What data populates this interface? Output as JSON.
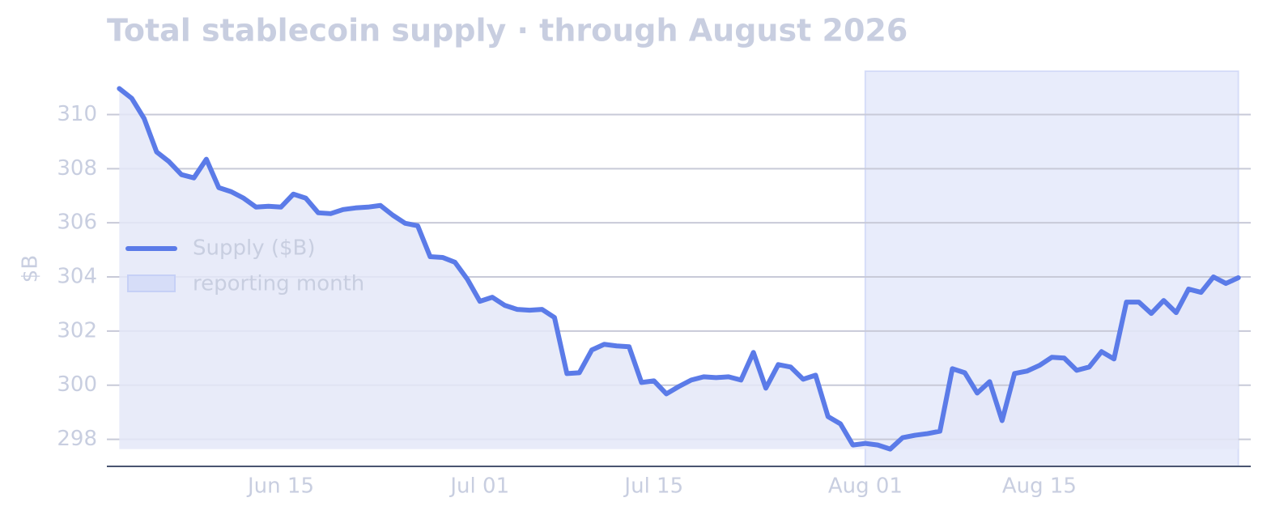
{
  "chart_data": {
    "type": "line",
    "title": "Total stablecoin supply · through August 2026",
    "ylabel": "$B",
    "x": [
      "2026-06-02",
      "2026-06-03",
      "2026-06-04",
      "2026-06-05",
      "2026-06-06",
      "2026-06-07",
      "2026-06-08",
      "2026-06-09",
      "2026-06-10",
      "2026-06-11",
      "2026-06-12",
      "2026-06-13",
      "2026-06-14",
      "2026-06-15",
      "2026-06-16",
      "2026-06-17",
      "2026-06-18",
      "2026-06-19",
      "2026-06-20",
      "2026-06-21",
      "2026-06-22",
      "2026-06-23",
      "2026-06-24",
      "2026-06-25",
      "2026-06-26",
      "2026-06-27",
      "2026-06-28",
      "2026-06-29",
      "2026-06-30",
      "2026-07-01",
      "2026-07-02",
      "2026-07-03",
      "2026-07-04",
      "2026-07-05",
      "2026-07-06",
      "2026-07-07",
      "2026-07-08",
      "2026-07-09",
      "2026-07-10",
      "2026-07-11",
      "2026-07-12",
      "2026-07-13",
      "2026-07-14",
      "2026-07-15",
      "2026-07-16",
      "2026-07-17",
      "2026-07-18",
      "2026-07-19",
      "2026-07-20",
      "2026-07-21",
      "2026-07-22",
      "2026-07-23",
      "2026-07-24",
      "2026-07-25",
      "2026-07-26",
      "2026-07-27",
      "2026-07-28",
      "2026-07-29",
      "2026-07-30",
      "2026-07-31",
      "2026-08-01",
      "2026-08-02",
      "2026-08-03",
      "2026-08-04",
      "2026-08-05",
      "2026-08-06",
      "2026-08-07",
      "2026-08-08",
      "2026-08-09",
      "2026-08-10",
      "2026-08-11",
      "2026-08-12",
      "2026-08-13",
      "2026-08-14",
      "2026-08-15",
      "2026-08-16",
      "2026-08-17",
      "2026-08-18",
      "2026-08-19",
      "2026-08-20",
      "2026-08-21",
      "2026-08-22",
      "2026-08-23",
      "2026-08-24",
      "2026-08-25",
      "2026-08-26",
      "2026-08-27",
      "2026-08-28",
      "2026-08-29",
      "2026-08-30",
      "2026-08-31"
    ],
    "series": [
      {
        "name": "Supply ($B)",
        "color": "#5b7be8",
        "fill": "#e4e8f8",
        "values": [
          310.96,
          310.6,
          309.85,
          308.62,
          308.26,
          307.78,
          307.66,
          308.35,
          307.3,
          307.15,
          306.91,
          306.58,
          306.61,
          306.58,
          307.06,
          306.91,
          306.37,
          306.34,
          306.49,
          306.55,
          306.58,
          306.64,
          306.28,
          305.98,
          305.89,
          304.75,
          304.72,
          304.54,
          303.91,
          303.1,
          303.25,
          302.95,
          302.8,
          302.77,
          302.8,
          302.5,
          300.43,
          300.46,
          301.3,
          301.51,
          301.45,
          301.42,
          300.1,
          300.16,
          299.68,
          299.95,
          300.19,
          300.31,
          300.28,
          300.31,
          300.19,
          301.21,
          299.89,
          300.76,
          300.67,
          300.22,
          300.37,
          298.84,
          298.57,
          297.79,
          297.85,
          297.79,
          297.64,
          298.06,
          298.15,
          298.21,
          298.3,
          300.61,
          300.46,
          299.71,
          300.13,
          298.69,
          300.43,
          300.52,
          300.73,
          301.03,
          301.0,
          300.55,
          300.67,
          301.24,
          300.97,
          303.07,
          303.07,
          302.65,
          303.13,
          302.68,
          303.55,
          303.43,
          304.0,
          303.76,
          303.97
        ]
      }
    ],
    "span": {
      "start": "2026-08-01",
      "end": "2026-08-31",
      "label": "reporting month",
      "color": "#d6ddf8"
    },
    "xlim": [
      "2026-06-01",
      "2026-09-01"
    ],
    "xticks": [
      {
        "value": "2026-06-15",
        "label": "Jun 15"
      },
      {
        "value": "2026-07-01",
        "label": "Jul 01"
      },
      {
        "value": "2026-07-15",
        "label": "Jul 15"
      },
      {
        "value": "2026-08-01",
        "label": "Aug 01"
      },
      {
        "value": "2026-08-15",
        "label": "Aug 15"
      }
    ],
    "ylim": [
      297,
      311.6
    ],
    "yticks": [
      298,
      300,
      302,
      304,
      306,
      308,
      310
    ],
    "grid": true,
    "legend": "center left"
  }
}
